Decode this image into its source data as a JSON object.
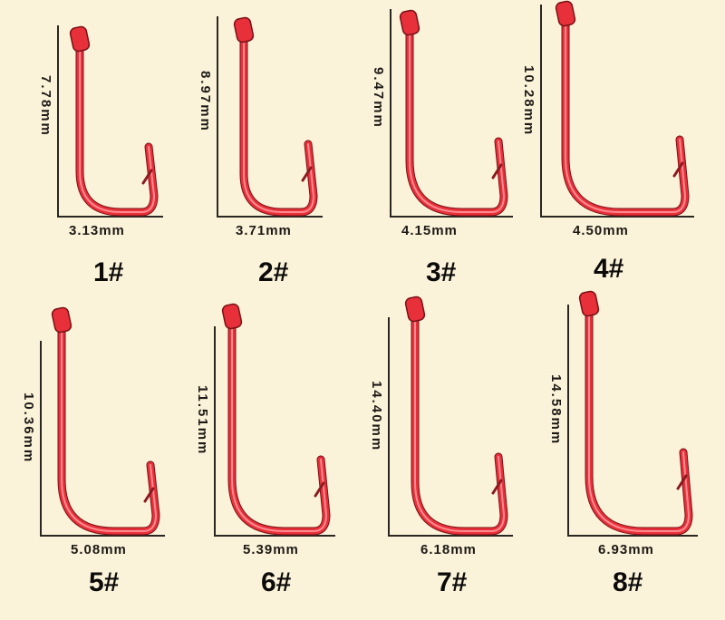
{
  "hooks": [
    {
      "size": "1#",
      "height": "7.78mm",
      "width": "3.13mm"
    },
    {
      "size": "2#",
      "height": "8.97mm",
      "width": "3.71mm"
    },
    {
      "size": "3#",
      "height": "9.47mm",
      "width": "4.15mm"
    },
    {
      "size": "4#",
      "height": "10.28mm",
      "width": "4.50mm"
    },
    {
      "size": "5#",
      "height": "10.36mm",
      "width": "5.08mm"
    },
    {
      "size": "6#",
      "height": "11.51mm",
      "width": "5.39mm"
    },
    {
      "size": "7#",
      "height": "14.40mm",
      "width": "6.18mm"
    },
    {
      "size": "8#",
      "height": "14.58mm",
      "width": "6.93mm"
    }
  ],
  "colors": {
    "background": "#fbf3d9",
    "hook": "#e8303a",
    "hook_highlight": "#ff8a8f",
    "axis": "#2a2622"
  }
}
